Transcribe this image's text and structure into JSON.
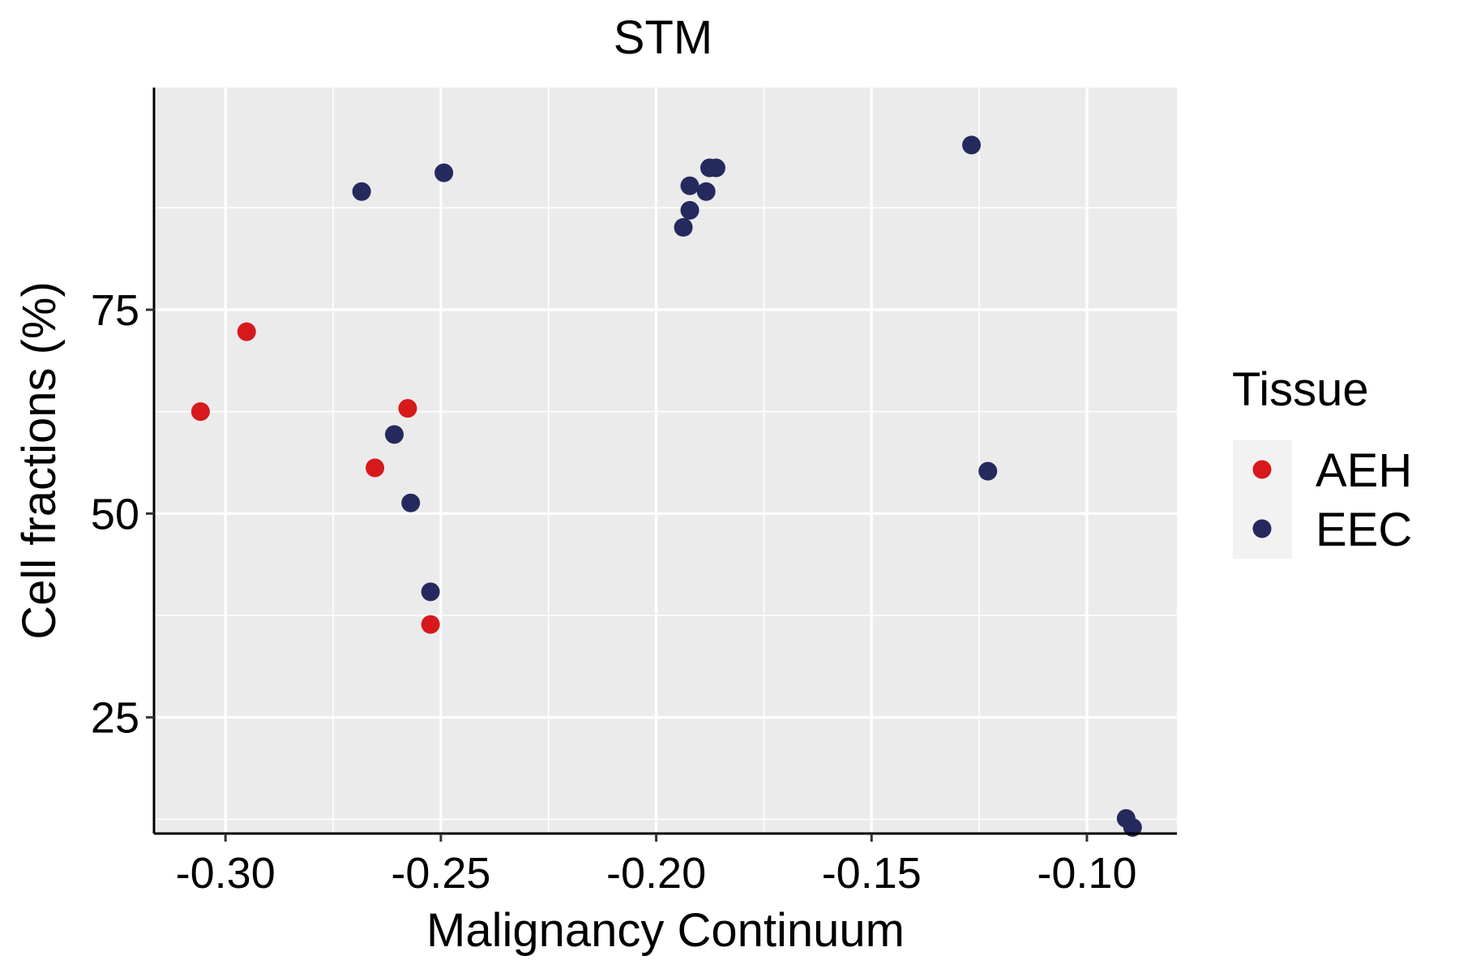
{
  "chart_data": {
    "type": "scatter",
    "title": "STM",
    "xlabel": "Malignancy Continuum",
    "ylabel": "Cell fractions (%)",
    "xlim": [
      -0.3166,
      -0.0791
    ],
    "ylim": [
      10.75,
      102.25
    ],
    "x_ticks": [
      {
        "value": -0.3,
        "label": "-0.30"
      },
      {
        "value": -0.25,
        "label": "-0.25"
      },
      {
        "value": -0.2,
        "label": "-0.20"
      },
      {
        "value": -0.15,
        "label": "-0.15"
      },
      {
        "value": -0.1,
        "label": "-0.10"
      }
    ],
    "y_ticks": [
      {
        "value": 25,
        "label": "25"
      },
      {
        "value": 50,
        "label": "50"
      },
      {
        "value": 75,
        "label": "75"
      }
    ],
    "x_minor": [
      -0.275,
      -0.225,
      -0.175,
      -0.125
    ],
    "y_minor": [
      12.5,
      37.5,
      62.5,
      87.5
    ],
    "grid": true,
    "legend": {
      "title": "Tissue",
      "position": "right"
    },
    "series": [
      {
        "name": "AEH",
        "color": "#d7191c",
        "points": [
          {
            "x": -0.3058,
            "y": 62.5
          },
          {
            "x": -0.2951,
            "y": 72.3
          },
          {
            "x": -0.2653,
            "y": 55.6
          },
          {
            "x": -0.2577,
            "y": 62.9
          },
          {
            "x": -0.2524,
            "y": 36.4
          }
        ]
      },
      {
        "name": "EEC",
        "color": "#252a5e",
        "points": [
          {
            "x": -0.2684,
            "y": 89.5
          },
          {
            "x": -0.2608,
            "y": 59.7
          },
          {
            "x": -0.257,
            "y": 51.3
          },
          {
            "x": -0.2524,
            "y": 40.4
          },
          {
            "x": -0.2493,
            "y": 91.8
          },
          {
            "x": -0.1937,
            "y": 85.1
          },
          {
            "x": -0.1922,
            "y": 87.2
          },
          {
            "x": -0.1922,
            "y": 90.2
          },
          {
            "x": -0.1884,
            "y": 89.5
          },
          {
            "x": -0.1876,
            "y": 92.4
          },
          {
            "x": -0.1861,
            "y": 92.4
          },
          {
            "x": -0.1268,
            "y": 95.2
          },
          {
            "x": -0.123,
            "y": 55.2
          },
          {
            "x": -0.0909,
            "y": 12.6
          },
          {
            "x": -0.0894,
            "y": 11.5
          }
        ]
      }
    ]
  }
}
